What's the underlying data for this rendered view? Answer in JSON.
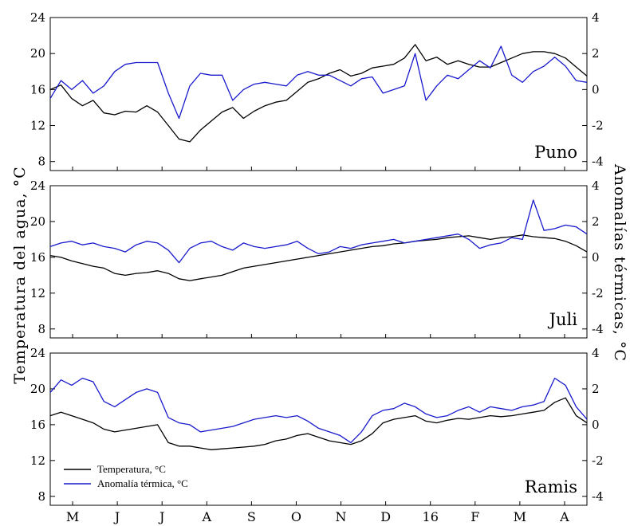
{
  "chart_data": {
    "type": "line",
    "ylabel_left": "Temperatura del agua, °C",
    "ylabel_right": "Anomalías térmicas, °C",
    "x_tick_labels": [
      "M",
      "J",
      "J",
      "A",
      "S",
      "O",
      "N",
      "D",
      "16",
      "F",
      "M",
      "A"
    ],
    "ylim_left": [
      7,
      24
    ],
    "yticks_left": [
      "8",
      "12",
      "16",
      "20",
      "24"
    ],
    "ylim_right": [
      -4.5,
      4
    ],
    "yticks_right": [
      "-4",
      "-2",
      "0",
      "2",
      "4"
    ],
    "legend": {
      "placement": "bottom-left of bottom panel",
      "entries": [
        "Temperatura, °C",
        "Anomalía térmica, °C"
      ]
    },
    "colors": {
      "temperature": "#000000",
      "anomaly": "#1a1acc"
    },
    "panels": [
      {
        "name": "Puno",
        "series": [
          {
            "name": "Temperatura, °C",
            "axis": "left",
            "x": [
              0,
              0.02,
              0.04,
              0.06,
              0.08,
              0.1,
              0.12,
              0.14,
              0.16,
              0.18,
              0.2,
              0.22,
              0.24,
              0.26,
              0.28,
              0.3,
              0.32,
              0.34,
              0.36,
              0.38,
              0.4,
              0.42,
              0.44,
              0.46,
              0.48,
              0.5,
              0.52,
              0.54,
              0.56,
              0.58,
              0.6,
              0.62,
              0.64,
              0.66,
              0.68,
              0.7,
              0.72,
              0.74,
              0.76,
              0.78,
              0.8,
              0.82,
              0.84,
              0.86,
              0.88,
              0.9,
              0.92,
              0.94,
              0.96,
              0.98,
              1.0
            ],
            "values": [
              16.0,
              16.5,
              15.0,
              14.2,
              14.8,
              13.4,
              13.2,
              13.6,
              13.5,
              14.2,
              13.5,
              12.0,
              10.5,
              10.2,
              11.5,
              12.5,
              13.5,
              14.0,
              12.8,
              13.6,
              14.2,
              14.6,
              14.8,
              15.8,
              16.8,
              17.2,
              17.8,
              18.2,
              17.5,
              17.8,
              18.4,
              18.6,
              18.8,
              19.5,
              21.0,
              19.2,
              19.6,
              18.8,
              19.2,
              18.8,
              18.5,
              18.5,
              19.0,
              19.5,
              20.0,
              20.2,
              20.2,
              20.0,
              19.5,
              18.5,
              17.5
            ]
          },
          {
            "name": "Anomalía térmica, °C",
            "axis": "right",
            "x": [
              0,
              0.02,
              0.04,
              0.06,
              0.08,
              0.1,
              0.12,
              0.14,
              0.16,
              0.18,
              0.2,
              0.22,
              0.24,
              0.26,
              0.28,
              0.3,
              0.32,
              0.34,
              0.36,
              0.38,
              0.4,
              0.42,
              0.44,
              0.46,
              0.48,
              0.5,
              0.52,
              0.54,
              0.56,
              0.58,
              0.6,
              0.62,
              0.64,
              0.66,
              0.68,
              0.7,
              0.72,
              0.74,
              0.76,
              0.78,
              0.8,
              0.82,
              0.84,
              0.86,
              0.88,
              0.9,
              0.92,
              0.94,
              0.96,
              0.98,
              1.0
            ],
            "values": [
              -0.5,
              0.5,
              0.0,
              0.5,
              -0.2,
              0.2,
              1.0,
              1.4,
              1.5,
              1.5,
              1.5,
              -0.2,
              -1.6,
              0.2,
              0.9,
              0.8,
              0.8,
              -0.6,
              0.0,
              0.3,
              0.4,
              0.3,
              0.2,
              0.8,
              1.0,
              0.8,
              0.8,
              0.5,
              0.2,
              0.6,
              0.7,
              -0.2,
              0.0,
              0.2,
              2.0,
              -0.6,
              0.2,
              0.8,
              0.6,
              1.1,
              1.6,
              1.2,
              2.4,
              0.8,
              0.4,
              1.0,
              1.3,
              1.8,
              1.3,
              0.5,
              0.4
            ]
          }
        ]
      },
      {
        "name": "Juli",
        "series": [
          {
            "name": "Temperatura, °C",
            "axis": "left",
            "x": [
              0,
              0.02,
              0.04,
              0.06,
              0.08,
              0.1,
              0.12,
              0.14,
              0.16,
              0.18,
              0.2,
              0.22,
              0.24,
              0.26,
              0.28,
              0.3,
              0.32,
              0.34,
              0.36,
              0.38,
              0.4,
              0.42,
              0.44,
              0.46,
              0.48,
              0.5,
              0.52,
              0.54,
              0.56,
              0.58,
              0.6,
              0.62,
              0.64,
              0.66,
              0.68,
              0.7,
              0.72,
              0.74,
              0.76,
              0.78,
              0.8,
              0.82,
              0.84,
              0.86,
              0.88,
              0.9,
              0.92,
              0.94,
              0.96,
              0.98,
              1.0
            ],
            "values": [
              16.2,
              16.0,
              15.6,
              15.3,
              15.0,
              14.8,
              14.2,
              14.0,
              14.2,
              14.3,
              14.5,
              14.2,
              13.6,
              13.4,
              13.6,
              13.8,
              14.0,
              14.4,
              14.8,
              15.0,
              15.2,
              15.4,
              15.6,
              15.8,
              16.0,
              16.2,
              16.4,
              16.6,
              16.8,
              17.0,
              17.2,
              17.3,
              17.5,
              17.6,
              17.8,
              17.9,
              18.0,
              18.2,
              18.3,
              18.4,
              18.2,
              18.0,
              18.2,
              18.3,
              18.5,
              18.3,
              18.2,
              18.1,
              17.8,
              17.3,
              16.6
            ]
          },
          {
            "name": "Anomalía térmica, °C",
            "axis": "right",
            "x": [
              0,
              0.02,
              0.04,
              0.06,
              0.08,
              0.1,
              0.12,
              0.14,
              0.16,
              0.18,
              0.2,
              0.22,
              0.24,
              0.26,
              0.28,
              0.3,
              0.32,
              0.34,
              0.36,
              0.38,
              0.4,
              0.42,
              0.44,
              0.46,
              0.48,
              0.5,
              0.52,
              0.54,
              0.56,
              0.58,
              0.6,
              0.62,
              0.64,
              0.66,
              0.68,
              0.7,
              0.72,
              0.74,
              0.76,
              0.78,
              0.8,
              0.82,
              0.84,
              0.86,
              0.88,
              0.9,
              0.92,
              0.94,
              0.96,
              0.98,
              1.0
            ],
            "values": [
              0.6,
              0.8,
              0.9,
              0.7,
              0.8,
              0.6,
              0.5,
              0.3,
              0.7,
              0.9,
              0.8,
              0.4,
              -0.3,
              0.5,
              0.8,
              0.9,
              0.6,
              0.4,
              0.8,
              0.6,
              0.5,
              0.6,
              0.7,
              0.9,
              0.5,
              0.2,
              0.3,
              0.6,
              0.5,
              0.7,
              0.8,
              0.9,
              1.0,
              0.8,
              0.9,
              1.0,
              1.1,
              1.2,
              1.3,
              1.0,
              0.5,
              0.7,
              0.8,
              1.1,
              1.0,
              3.2,
              1.5,
              1.6,
              1.8,
              1.7,
              1.3
            ]
          }
        ]
      },
      {
        "name": "Ramis",
        "series": [
          {
            "name": "Temperatura, °C",
            "axis": "left",
            "x": [
              0,
              0.02,
              0.04,
              0.06,
              0.08,
              0.1,
              0.12,
              0.14,
              0.16,
              0.18,
              0.2,
              0.22,
              0.24,
              0.26,
              0.28,
              0.3,
              0.32,
              0.34,
              0.36,
              0.38,
              0.4,
              0.42,
              0.44,
              0.46,
              0.48,
              0.5,
              0.52,
              0.54,
              0.56,
              0.58,
              0.6,
              0.62,
              0.64,
              0.66,
              0.68,
              0.7,
              0.72,
              0.74,
              0.76,
              0.78,
              0.8,
              0.82,
              0.84,
              0.86,
              0.88,
              0.9,
              0.92,
              0.94,
              0.96,
              0.98,
              1.0
            ],
            "values": [
              17.0,
              17.4,
              17.0,
              16.6,
              16.2,
              15.5,
              15.2,
              15.4,
              15.6,
              15.8,
              16.0,
              14.0,
              13.6,
              13.6,
              13.4,
              13.2,
              13.3,
              13.4,
              13.5,
              13.6,
              13.8,
              14.2,
              14.4,
              14.8,
              15.0,
              14.6,
              14.2,
              14.0,
              13.8,
              14.2,
              15.0,
              16.2,
              16.6,
              16.8,
              17.0,
              16.4,
              16.2,
              16.5,
              16.7,
              16.6,
              16.8,
              17.0,
              16.9,
              17.0,
              17.2,
              17.4,
              17.6,
              18.5,
              19.0,
              17.0,
              16.2
            ]
          },
          {
            "name": "Anomalía térmica, °C",
            "axis": "right",
            "x": [
              0,
              0.02,
              0.04,
              0.06,
              0.08,
              0.1,
              0.12,
              0.14,
              0.16,
              0.18,
              0.2,
              0.22,
              0.24,
              0.26,
              0.28,
              0.3,
              0.32,
              0.34,
              0.36,
              0.38,
              0.4,
              0.42,
              0.44,
              0.46,
              0.48,
              0.5,
              0.52,
              0.54,
              0.56,
              0.58,
              0.6,
              0.62,
              0.64,
              0.66,
              0.68,
              0.7,
              0.72,
              0.74,
              0.76,
              0.78,
              0.8,
              0.82,
              0.84,
              0.86,
              0.88,
              0.9,
              0.92,
              0.94,
              0.96,
              0.98,
              1.0
            ],
            "values": [
              1.8,
              2.5,
              2.2,
              2.6,
              2.4,
              1.3,
              1.0,
              1.4,
              1.8,
              2.0,
              1.8,
              0.4,
              0.1,
              0.0,
              -0.4,
              -0.3,
              -0.2,
              -0.1,
              0.1,
              0.3,
              0.4,
              0.5,
              0.4,
              0.5,
              0.2,
              -0.2,
              -0.4,
              -0.6,
              -1.0,
              -0.4,
              0.5,
              0.8,
              0.9,
              1.2,
              1.0,
              0.6,
              0.4,
              0.5,
              0.8,
              1.0,
              0.7,
              1.0,
              0.9,
              0.8,
              1.0,
              1.1,
              1.3,
              2.6,
              2.2,
              1.0,
              0.3
            ]
          }
        ]
      }
    ]
  }
}
